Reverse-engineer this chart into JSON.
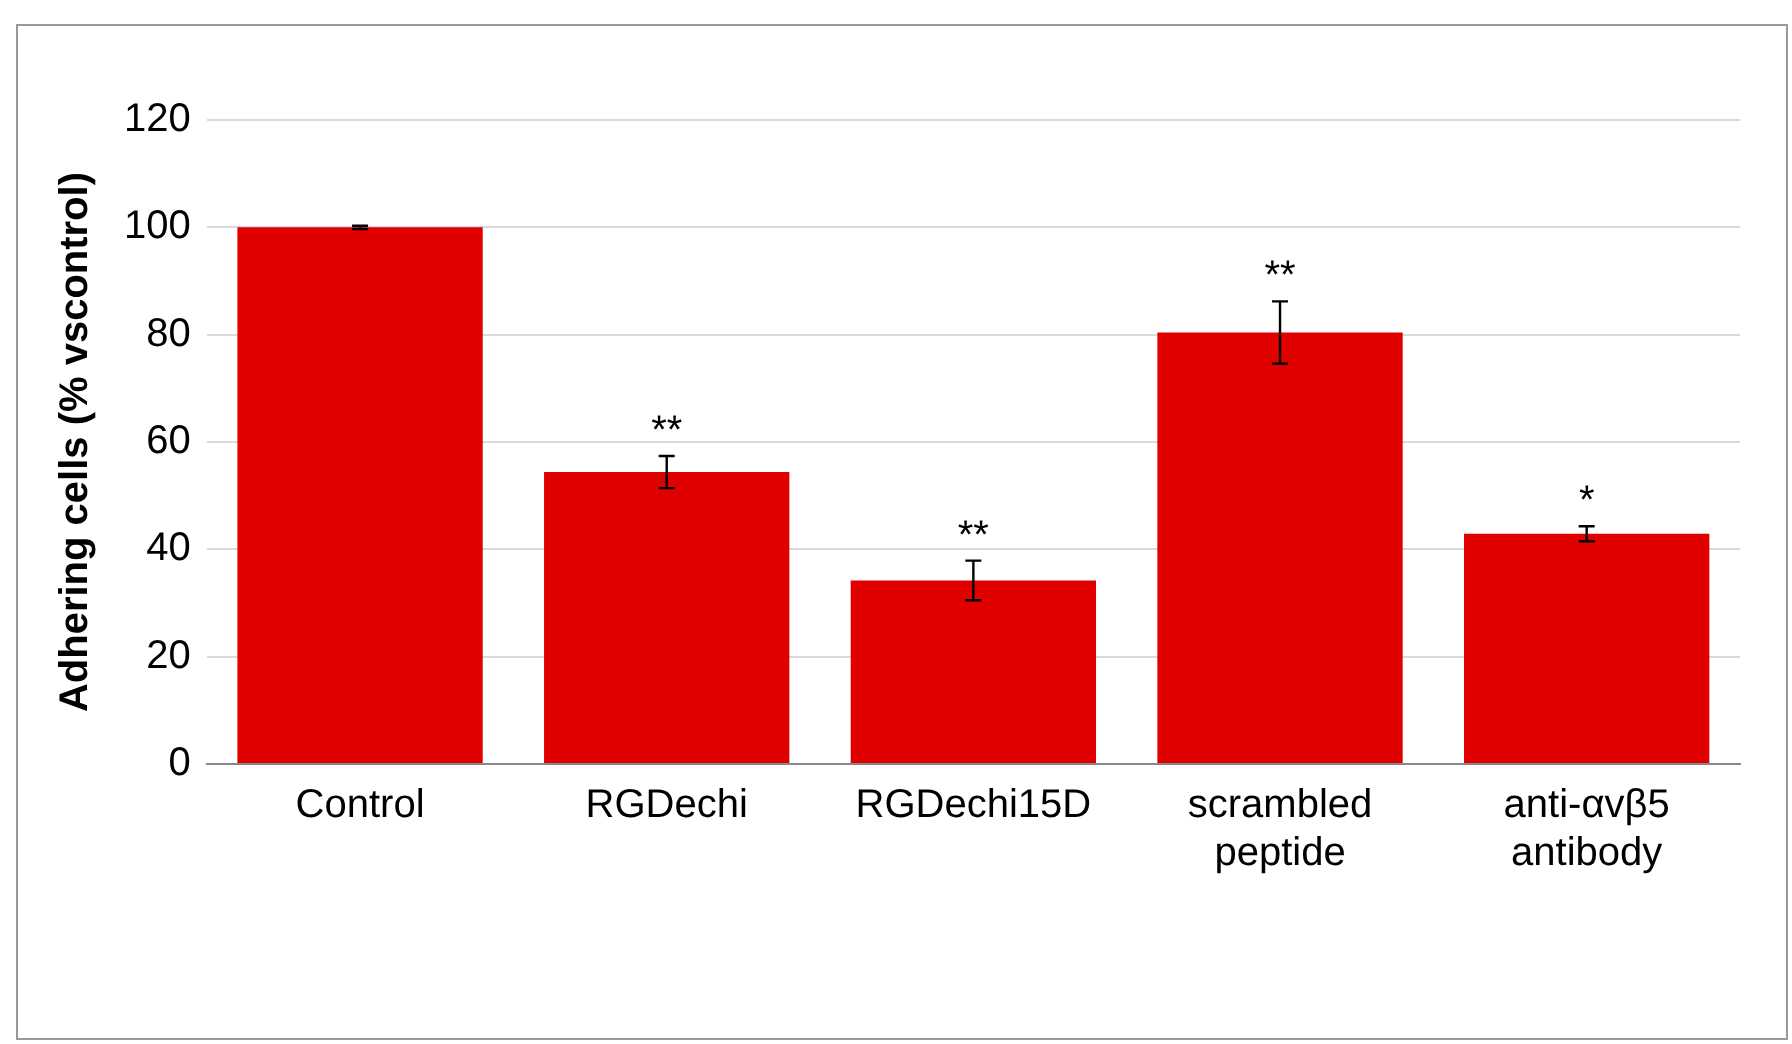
{
  "chart_data": {
    "type": "bar",
    "ylabel": "Adhering cells (% vscontrol)",
    "categories": [
      "Control",
      "RGDechi",
      "RGDechi15D",
      "scrambled peptide",
      "anti-αvβ5 antibody"
    ],
    "values": [
      100,
      54.4,
      34.2,
      80.4,
      42.9
    ],
    "errors": [
      0.3,
      3,
      3.7,
      5.8,
      1.4
    ],
    "color": "#e00000",
    "ylim": [
      0,
      120
    ],
    "yticks": [
      0,
      20,
      40,
      60,
      80,
      100,
      120
    ],
    "grid": "y",
    "legend": false,
    "annotations": [
      {
        "text": "**",
        "x": "RGDechi",
        "y": 57.4
      },
      {
        "text": "**",
        "x": "RGDechi15D",
        "y": 37.9
      },
      {
        "text": "**",
        "x": "scrambled peptide",
        "y": 86.2
      },
      {
        "text": "*",
        "x": "anti-αvβ5 antibody",
        "y": 44.3
      }
    ]
  }
}
